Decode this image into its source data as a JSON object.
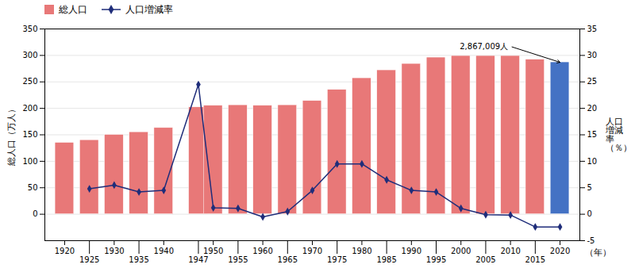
{
  "chart_data": {
    "type": "bar",
    "x": [
      1920,
      1925,
      1930,
      1935,
      1940,
      1947,
      1950,
      1955,
      1960,
      1965,
      1970,
      1975,
      1980,
      1985,
      1990,
      1995,
      2000,
      2005,
      2010,
      2015,
      2020
    ],
    "xlim": [
      1916,
      2024
    ],
    "xticks": [
      1920,
      1925,
      1930,
      1935,
      1940,
      1947,
      1950,
      1955,
      1960,
      1965,
      1970,
      1975,
      1980,
      1985,
      1990,
      1995,
      2000,
      2005,
      2010,
      2015,
      2020
    ],
    "xlabel": "（年）",
    "ylabel": "総人口（万人）",
    "ylim": [
      -50,
      350
    ],
    "yticks": [
      0,
      50,
      100,
      150,
      200,
      250,
      300,
      350
    ],
    "y2label": "人口\n増減\n率\n（％）",
    "y2lim": [
      -5,
      35
    ],
    "y2ticks": [
      -5,
      0,
      5,
      10,
      15,
      20,
      25,
      30,
      35
    ],
    "grid": true,
    "legend": "upper left",
    "series": [
      {
        "name": "総人口",
        "type": "bar",
        "values": [
          135,
          140,
          150,
          155,
          163,
          202,
          205,
          206,
          205,
          206,
          214,
          235,
          257,
          272,
          284,
          296,
          299,
          299,
          299,
          292,
          287
        ],
        "colors": [
          "#e87878",
          "#e87878",
          "#e87878",
          "#e87878",
          "#e87878",
          "#e87878",
          "#e87878",
          "#e87878",
          "#e87878",
          "#e87878",
          "#e87878",
          "#e87878",
          "#e87878",
          "#e87878",
          "#e87878",
          "#e87878",
          "#e87878",
          "#e87878",
          "#e87878",
          "#e87878",
          "#4472c4"
        ]
      },
      {
        "name": "人口増減率",
        "type": "line",
        "axis": "y2",
        "color": "#1f2d7a",
        "marker": "diamond",
        "values": [
          null,
          4.8,
          5.5,
          4.2,
          4.5,
          24.5,
          1.2,
          1.1,
          -0.5,
          0.5,
          4.5,
          9.5,
          9.5,
          6.5,
          4.5,
          4.2,
          1.1,
          -0.1,
          -0.15,
          -2.4,
          -2.4
        ]
      }
    ],
    "annotations": [
      {
        "text": "2,867,009人",
        "x": 2020,
        "y": 287
      }
    ]
  }
}
